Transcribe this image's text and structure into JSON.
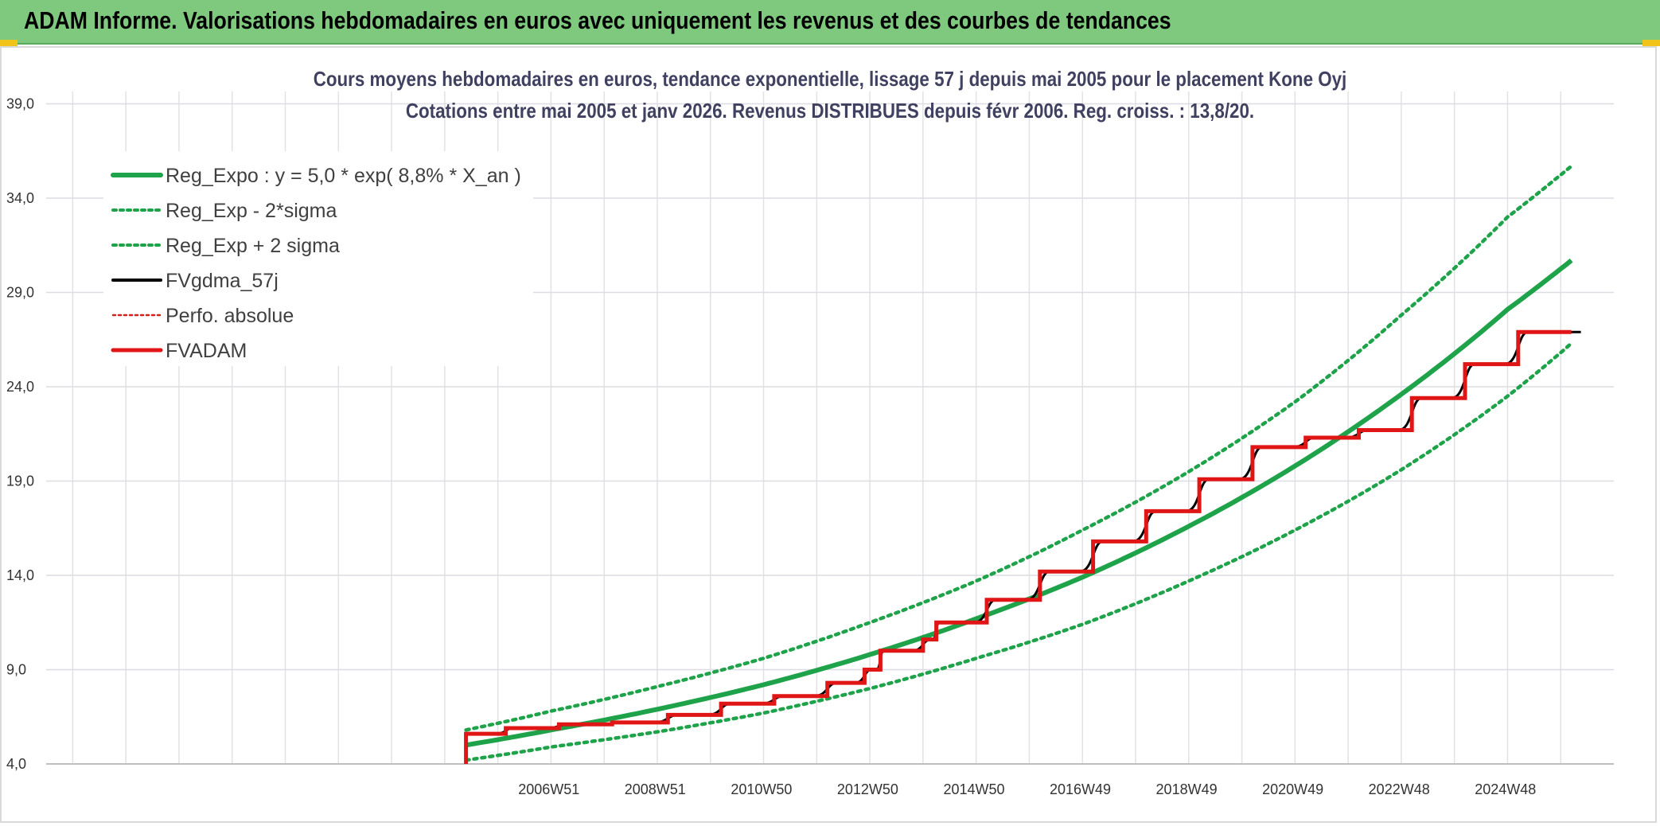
{
  "banner": {
    "title": "ADAM Informe. Valorisations hebdomadaires en euros avec uniquement les revenus et des courbes de tendances"
  },
  "chart_data": {
    "type": "line",
    "title": "Cours moyens hebdomadaires en euros, tendance exponentielle, lissage 57 j depuis mai 2005 pour le placement Kone Oyj",
    "subtitle": "Cotations entre mai 2005 et janv 2026. Revenus DISTRIBUES depuis févr 2006. Reg. croiss. : 13,8/20.",
    "xlabel": "",
    "ylabel": "",
    "ylim": [
      4.0,
      40.5
    ],
    "yticks": [
      "4,0",
      "9,0",
      "14,0",
      "19,0",
      "24,0",
      "29,0",
      "34,0",
      "39,0"
    ],
    "xticks": [
      "2006W51",
      "2008W51",
      "2010W50",
      "2012W50",
      "2014W50",
      "2016W49",
      "2018W49",
      "2020W49",
      "2022W48",
      "2024W48"
    ],
    "xtick_years": [
      2006.96,
      2008.96,
      2010.96,
      2012.96,
      2014.96,
      2016.96,
      2018.96,
      2020.96,
      2022.96,
      2024.96
    ],
    "xlim": [
      1997.5,
      2027.0
    ],
    "grid": true,
    "legend_position": "top-left",
    "series": [
      {
        "name": "Reg_Expo : y = 5,0 * exp( 8,8% *  X_an )",
        "color": "#1fa34a",
        "style": "solid-thick",
        "points": [
          [
            2005.4,
            5.0
          ],
          [
            2007.0,
            5.8
          ],
          [
            2009.0,
            6.9
          ],
          [
            2011.0,
            8.2
          ],
          [
            2013.0,
            9.8
          ],
          [
            2015.0,
            11.7
          ],
          [
            2017.0,
            13.9
          ],
          [
            2019.0,
            16.6
          ],
          [
            2021.0,
            19.8
          ],
          [
            2023.0,
            23.6
          ],
          [
            2025.0,
            28.1
          ],
          [
            2026.2,
            30.7
          ]
        ]
      },
      {
        "name": "Reg_Exp - 2*sigma",
        "color": "#1fa34a",
        "style": "dotted",
        "points": [
          [
            2005.4,
            4.2
          ],
          [
            2007.0,
            4.9
          ],
          [
            2009.0,
            5.7
          ],
          [
            2011.0,
            6.7
          ],
          [
            2013.0,
            8.0
          ],
          [
            2015.0,
            9.6
          ],
          [
            2017.0,
            11.4
          ],
          [
            2019.0,
            13.7
          ],
          [
            2021.0,
            16.4
          ],
          [
            2023.0,
            19.6
          ],
          [
            2025.0,
            23.5
          ],
          [
            2026.2,
            26.3
          ]
        ]
      },
      {
        "name": "Reg_Exp + 2 sigma",
        "color": "#1fa34a",
        "style": "dotted",
        "points": [
          [
            2005.4,
            5.8
          ],
          [
            2007.0,
            6.8
          ],
          [
            2009.0,
            8.1
          ],
          [
            2011.0,
            9.6
          ],
          [
            2013.0,
            11.5
          ],
          [
            2015.0,
            13.7
          ],
          [
            2017.0,
            16.4
          ],
          [
            2019.0,
            19.5
          ],
          [
            2021.0,
            23.2
          ],
          [
            2023.0,
            27.8
          ],
          [
            2025.0,
            33.0
          ],
          [
            2026.2,
            35.7
          ]
        ]
      },
      {
        "name": "FVgdma_57j",
        "color": "#000000",
        "style": "solid"
      },
      {
        "name": "Perfo. absolue",
        "color": "#d62020",
        "style": "dotted"
      },
      {
        "name": "FVADAM",
        "color": "#e01515",
        "style": "step-thick",
        "steps": [
          [
            2005.4,
            4.0
          ],
          [
            2005.4,
            5.6
          ],
          [
            2006.15,
            5.6
          ],
          [
            2006.15,
            5.9
          ],
          [
            2007.15,
            5.9
          ],
          [
            2007.15,
            6.1
          ],
          [
            2008.15,
            6.1
          ],
          [
            2008.15,
            6.2
          ],
          [
            2009.2,
            6.2
          ],
          [
            2009.2,
            6.6
          ],
          [
            2010.2,
            6.6
          ],
          [
            2010.2,
            7.2
          ],
          [
            2011.2,
            7.2
          ],
          [
            2011.2,
            7.6
          ],
          [
            2012.2,
            7.6
          ],
          [
            2012.2,
            8.3
          ],
          [
            2012.9,
            8.3
          ],
          [
            2012.9,
            9.0
          ],
          [
            2013.2,
            9.0
          ],
          [
            2013.2,
            10.0
          ],
          [
            2014.0,
            10.0
          ],
          [
            2014.0,
            10.6
          ],
          [
            2014.25,
            10.6
          ],
          [
            2014.25,
            11.5
          ],
          [
            2015.2,
            11.5
          ],
          [
            2015.2,
            12.7
          ],
          [
            2016.2,
            12.7
          ],
          [
            2016.2,
            14.2
          ],
          [
            2017.2,
            14.2
          ],
          [
            2017.2,
            15.8
          ],
          [
            2018.2,
            15.8
          ],
          [
            2018.2,
            17.4
          ],
          [
            2019.2,
            17.4
          ],
          [
            2019.2,
            19.1
          ],
          [
            2020.2,
            19.1
          ],
          [
            2020.2,
            20.8
          ],
          [
            2021.2,
            20.8
          ],
          [
            2021.2,
            21.3
          ],
          [
            2022.2,
            21.3
          ],
          [
            2022.2,
            21.7
          ],
          [
            2023.2,
            21.7
          ],
          [
            2023.2,
            23.4
          ],
          [
            2024.2,
            23.4
          ],
          [
            2024.2,
            25.2
          ],
          [
            2025.2,
            25.2
          ],
          [
            2025.2,
            26.9
          ],
          [
            2026.2,
            26.9
          ]
        ]
      }
    ]
  }
}
